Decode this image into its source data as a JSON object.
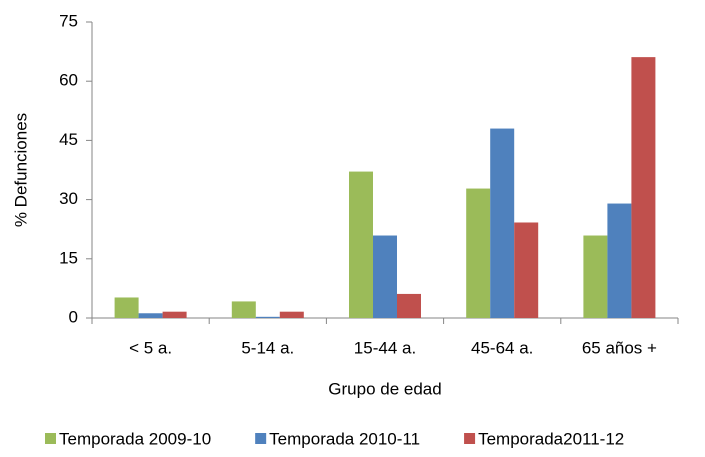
{
  "chart_data": {
    "type": "bar",
    "y_label": "% Defunciones",
    "x_label": "Grupo de edad",
    "categories": [
      "< 5 a.",
      "5-14 a.",
      "15-44 a.",
      "45-64 a.",
      "65 años +"
    ],
    "series": [
      {
        "name": "Temporada 2009-10",
        "color": "#9bbb59",
        "values": [
          5.2,
          4.2,
          37.1,
          32.8,
          20.9
        ]
      },
      {
        "name": "Temporada 2010-11",
        "color": "#4f81bd",
        "values": [
          1.2,
          0.3,
          20.9,
          48.0,
          29.0
        ]
      },
      {
        "name": "Temporada2011-12",
        "color": "#c0504d",
        "values": [
          1.6,
          1.6,
          6.1,
          24.2,
          66.1
        ]
      }
    ],
    "ylim": [
      0,
      75
    ],
    "yticks": [
      0,
      15,
      30,
      45,
      60,
      75
    ],
    "grid": false,
    "legend": "bottom"
  }
}
